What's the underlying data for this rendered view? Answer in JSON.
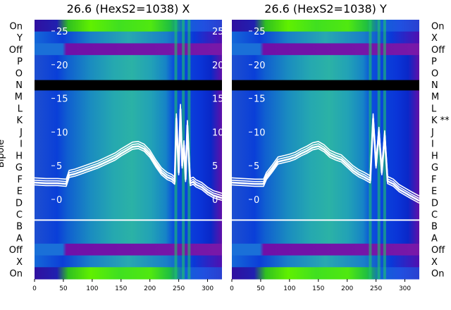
{
  "chart_data": [
    {
      "type": "heatmap",
      "title": "26.6 (HexS2=1038) X",
      "rows_top_to_bottom": [
        "On",
        "Y",
        "Off",
        "P",
        "O",
        "N",
        "M",
        "L",
        "K",
        "J",
        "I",
        "H",
        "G",
        "F",
        "E",
        "D",
        "C",
        "B",
        "A",
        "Off",
        "X",
        "On"
      ],
      "ylabel": "Bipole",
      "xlim": [
        0,
        325
      ],
      "xticks": [
        0,
        50,
        100,
        150,
        200,
        250,
        300
      ],
      "inner_ylim": [
        -4,
        27
      ],
      "inner_yticks": [
        0,
        5,
        10,
        15,
        20,
        25
      ],
      "horizontal_line_after_row": "C",
      "masked_rows": [
        "N"
      ],
      "bright_columns_x": [
        245,
        258,
        268
      ],
      "line_overlay": {
        "x": [
          0,
          20,
          40,
          55,
          60,
          70,
          80,
          90,
          100,
          110,
          120,
          130,
          140,
          150,
          160,
          170,
          180,
          190,
          200,
          210,
          220,
          230,
          238,
          243,
          246,
          250,
          253,
          256,
          259,
          262,
          265,
          268,
          270,
          275,
          280,
          290,
          300,
          310,
          325
        ],
        "y": [
          2.5,
          2.4,
          2.4,
          2.3,
          3.6,
          3.8,
          4.1,
          4.4,
          4.7,
          5.0,
          5.4,
          5.8,
          6.2,
          6.8,
          7.3,
          7.8,
          7.9,
          7.5,
          6.6,
          5.2,
          4.0,
          3.3,
          3.0,
          2.6,
          12,
          4,
          13.4,
          5,
          8,
          3,
          11,
          5.6,
          2.4,
          2.6,
          2.2,
          1.8,
          1.1,
          0.6,
          0.2
        ]
      },
      "extra_right_ticks": [
        "25",
        "20",
        "15",
        "10",
        "5",
        "0"
      ]
    },
    {
      "type": "heatmap",
      "title": "26.6 (HexS2=1038) Y",
      "rows_top_to_bottom": [
        "On",
        "X",
        "Off",
        "P",
        "O",
        "N",
        "M",
        "L",
        "K **",
        "J",
        "I",
        "H",
        "G",
        "F",
        "E",
        "D",
        "C",
        "B",
        "A",
        "Off",
        "X",
        "On"
      ],
      "xlim": [
        0,
        325
      ],
      "xticks": [
        0,
        50,
        100,
        150,
        200,
        250,
        300
      ],
      "inner_ylim": [
        -4,
        27
      ],
      "inner_yticks": [
        0,
        5,
        10,
        15,
        20,
        25
      ],
      "horizontal_line_after_row": "C",
      "masked_rows": [
        "N"
      ],
      "bright_columns_x": [
        240,
        255,
        265
      ],
      "line_overlay": {
        "x": [
          0,
          20,
          40,
          55,
          60,
          70,
          80,
          90,
          100,
          110,
          120,
          130,
          140,
          150,
          160,
          170,
          180,
          190,
          200,
          210,
          220,
          230,
          240,
          245,
          250,
          255,
          260,
          265,
          270,
          275,
          280,
          290,
          300,
          310,
          325
        ],
        "y": [
          2.5,
          2.4,
          2.3,
          2.3,
          3.3,
          4.4,
          5.6,
          5.8,
          6.0,
          6.3,
          6.8,
          7.2,
          7.7,
          7.9,
          7.4,
          6.6,
          6.2,
          5.9,
          5.1,
          4.3,
          3.7,
          3.3,
          2.8,
          12,
          5,
          10,
          4,
          9.5,
          2.7,
          2.5,
          2.3,
          1.5,
          1.0,
          0.5,
          -0.2
        ]
      }
    }
  ]
}
